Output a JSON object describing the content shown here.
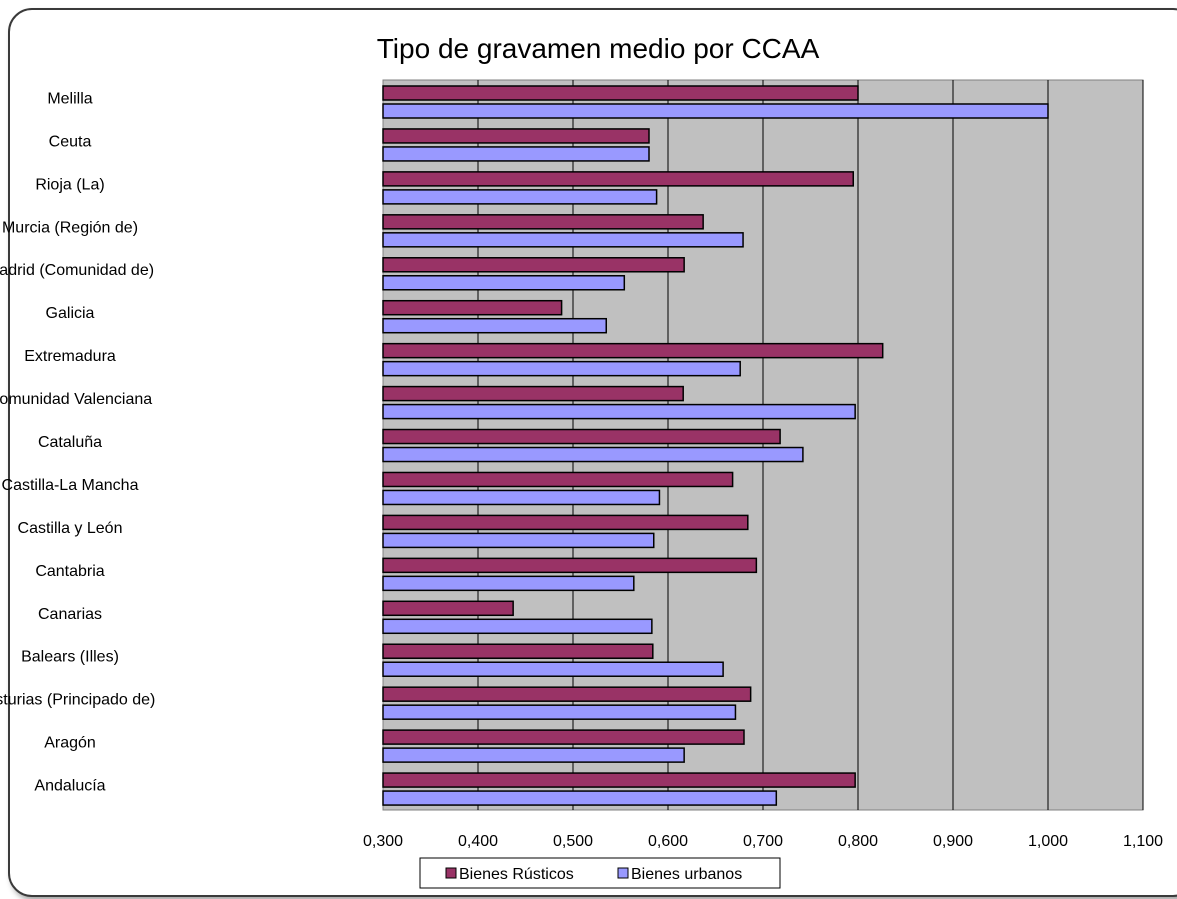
{
  "chart_data": {
    "type": "bar",
    "orientation": "horizontal",
    "title": "Tipo de gravamen medio por CCAA",
    "categories": [
      "Melilla",
      "Ceuta",
      "Rioja (La)",
      "Murcia (Región de)",
      "Madrid (Comunidad de)",
      "Galicia",
      "Extremadura",
      "Comunidad Valenciana",
      "Cataluña",
      "Castilla-La Mancha",
      "Castilla y León",
      "Cantabria",
      "Canarias",
      "Balears (Illes)",
      "Asturias (Principado de)",
      "Aragón",
      "Andalucía"
    ],
    "series": [
      {
        "name": "Bienes Rústicos",
        "color": "#993366",
        "values": [
          0.8,
          0.58,
          0.795,
          0.637,
          0.617,
          0.488,
          0.826,
          0.616,
          0.718,
          0.668,
          0.684,
          0.693,
          0.437,
          0.584,
          0.687,
          0.68,
          0.797
        ]
      },
      {
        "name": "Bienes urbanos",
        "color": "#9999ff",
        "values": [
          1.0,
          0.58,
          0.588,
          0.679,
          0.554,
          0.535,
          0.676,
          0.797,
          0.742,
          0.591,
          0.585,
          0.564,
          0.583,
          0.658,
          0.671,
          0.617,
          0.714
        ]
      }
    ],
    "x_ticks": [
      "0,300",
      "0,400",
      "0,500",
      "0,600",
      "0,700",
      "0,800",
      "0,900",
      "1,000",
      "1,100"
    ],
    "xlim": [
      0.3,
      1.1
    ],
    "xlabel": "",
    "ylabel": "",
    "grid": "vertical",
    "plot_background": "#c0c0c0",
    "legend_position": "bottom"
  }
}
